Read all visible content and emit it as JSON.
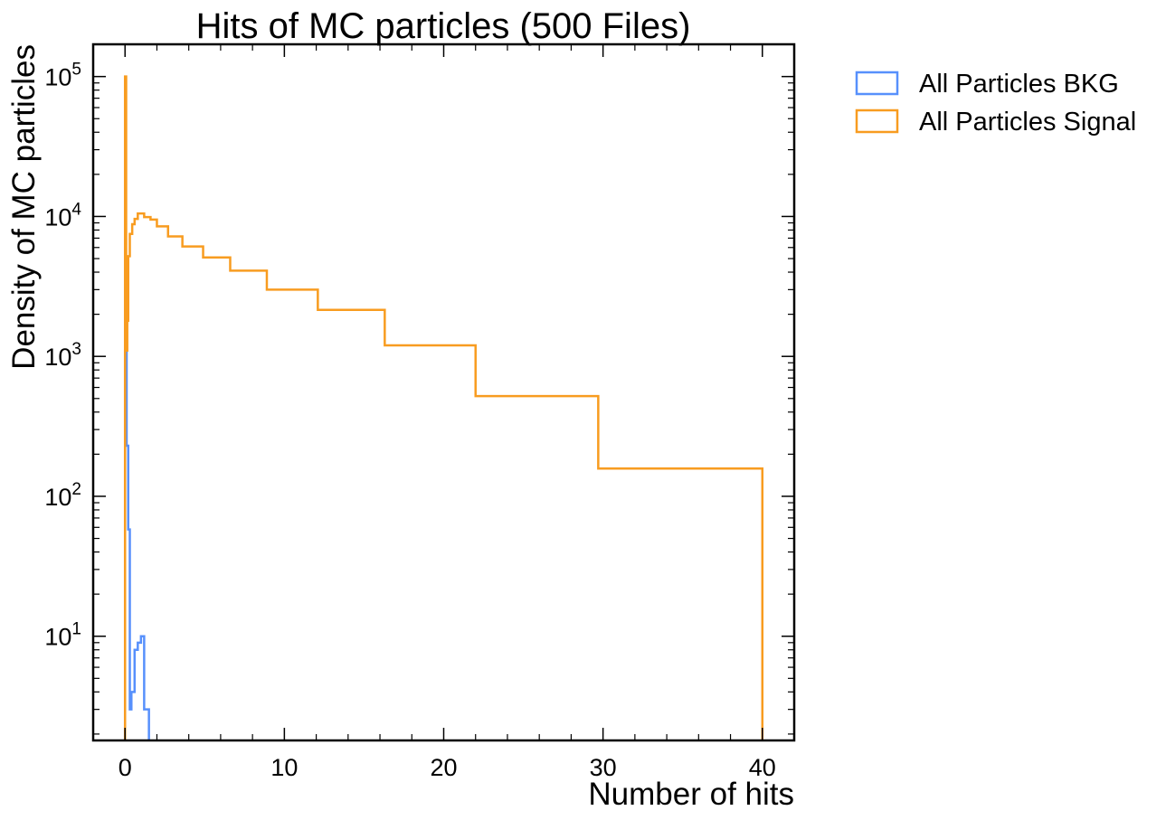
{
  "chart_data": {
    "type": "step-histogram",
    "title": "Hits of MC particles (500 Files)",
    "xlabel": "Number of hits",
    "ylabel": "Density of MC particles",
    "xlim": [
      -2,
      42
    ],
    "ylim": [
      1.8,
      170000
    ],
    "yscale": "log",
    "x_ticks": [
      0,
      10,
      20,
      30,
      40
    ],
    "y_ticks": [
      {
        "value": 10,
        "base": "10",
        "exp": "1"
      },
      {
        "value": 100,
        "base": "10",
        "exp": "2"
      },
      {
        "value": 1000,
        "base": "10",
        "exp": "3"
      },
      {
        "value": 10000,
        "base": "10",
        "exp": "4"
      },
      {
        "value": 100000,
        "base": "10",
        "exp": "5"
      }
    ],
    "grid": false,
    "legend_position": "outside-top-right",
    "series": [
      {
        "name": "All Particles BKG",
        "color": "#5790fc",
        "edges": [
          0.0,
          0.1,
          0.2,
          0.3,
          0.4,
          0.6,
          0.8,
          1.0,
          1.2,
          1.5
        ],
        "values": [
          1100,
          230,
          58,
          3,
          4,
          8,
          9,
          10,
          3
        ]
      },
      {
        "name": "All Particles Signal",
        "color": "#f89c20",
        "edges": [
          0.0,
          0.07,
          0.14,
          0.2,
          0.3,
          0.45,
          0.6,
          0.8,
          1.2,
          1.6,
          2.0,
          2.7,
          3.6,
          4.9,
          6.6,
          8.9,
          12.1,
          16.3,
          22.0,
          29.7,
          40.0
        ],
        "values": [
          100000,
          1100,
          1800,
          5200,
          7500,
          8800,
          9600,
          10500,
          9900,
          9500,
          8500,
          7200,
          6100,
          5100,
          4100,
          3000,
          2150,
          1200,
          520,
          158
        ]
      }
    ]
  }
}
